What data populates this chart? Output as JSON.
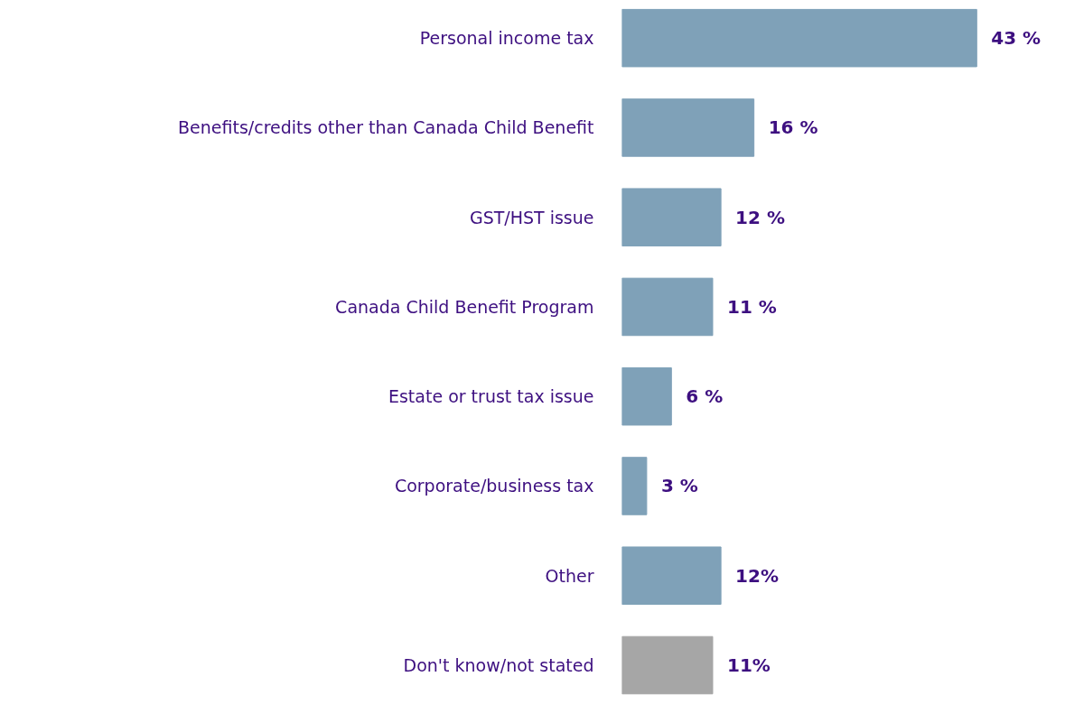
{
  "chart_data": {
    "type": "bar",
    "orientation": "horizontal",
    "categories": [
      "Personal income tax",
      "Benefits/credits other than Canada Child Benefit",
      "GST/HST issue",
      "Canada Child Benefit Program",
      "Estate or trust tax issue",
      "Corporate/business tax",
      "Other",
      "Don't know/not stated"
    ],
    "values": [
      43,
      16,
      12,
      11,
      6,
      3,
      12,
      11
    ],
    "colors": [
      "#7fa1b8",
      "#7fa1b8",
      "#7fa1b8",
      "#7fa1b8",
      "#7fa1b8",
      "#7fa1b8",
      "#7fa1b8",
      "#a6a6a6"
    ],
    "value_labels": [
      "43 %",
      "16 %",
      "12 %",
      "11 %",
      "6 %",
      "3 %",
      "12%",
      "11%"
    ],
    "grid": false
  }
}
